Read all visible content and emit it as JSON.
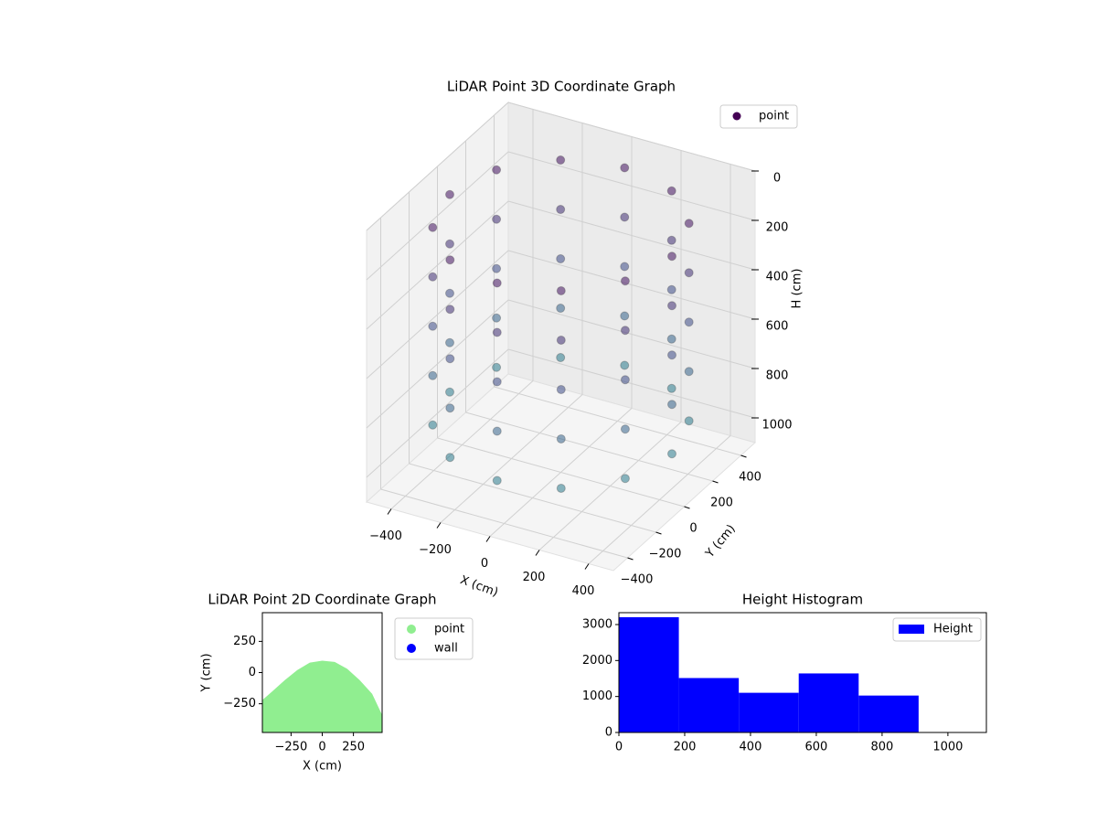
{
  "chart_data": [
    {
      "type": "scatter3d",
      "title": "LiDAR Point 3D Coordinate Graph",
      "xlabel": "X (cm)",
      "ylabel": "Y (cm)",
      "zlabel": "H (cm)",
      "series": [
        {
          "name": "point",
          "color": "#440154",
          "x": [
            450,
            390,
            225,
            0,
            -225,
            -390,
            -450,
            -390,
            -225,
            0,
            225,
            390,
            450,
            390,
            225,
            0,
            -225,
            -390,
            -450,
            -390,
            -225,
            0,
            225,
            390,
            450,
            390,
            225,
            0,
            -225,
            -390,
            -450,
            -390,
            -225,
            0,
            225,
            390,
            450,
            390,
            225,
            0,
            -225,
            -390,
            -450,
            -390,
            -225,
            0,
            225,
            390,
            450,
            390,
            225,
            0,
            -225,
            -390,
            -450,
            -390,
            -225,
            0,
            225,
            390
          ],
          "y": [
            0,
            225,
            390,
            450,
            390,
            225,
            0,
            -225,
            -390,
            -450,
            -390,
            -225,
            0,
            225,
            390,
            450,
            390,
            225,
            0,
            -225,
            -390,
            -450,
            -390,
            -225,
            0,
            225,
            390,
            450,
            390,
            225,
            0,
            -225,
            -390,
            -450,
            -390,
            -225,
            0,
            225,
            390,
            450,
            390,
            225,
            0,
            -225,
            -390,
            -450,
            -390,
            -225,
            0,
            225,
            390,
            450,
            390,
            225,
            0,
            -225,
            -390,
            -450,
            -390,
            -225
          ],
          "z": [
            100,
            100,
            100,
            100,
            100,
            100,
            100,
            100,
            100,
            100,
            100,
            100,
            300,
            300,
            300,
            300,
            300,
            300,
            300,
            300,
            300,
            300,
            300,
            300,
            500,
            500,
            500,
            500,
            500,
            500,
            500,
            500,
            500,
            500,
            500,
            500,
            700,
            700,
            700,
            700,
            700,
            700,
            700,
            700,
            700,
            700,
            700,
            700,
            900,
            900,
            900,
            900,
            900,
            900,
            900,
            900,
            900,
            900,
            900,
            900
          ]
        }
      ],
      "colormap": [
        "#440154",
        "#3b528b",
        "#21918c"
      ],
      "xlim": [
        -500,
        500
      ],
      "ylim": [
        -500,
        500
      ],
      "zlim": [
        0,
        1100
      ],
      "z_inverted": true,
      "xticks": [
        {
          "value": -400,
          "label": "−400"
        },
        {
          "value": -200,
          "label": "−200"
        },
        0,
        200,
        400
      ],
      "yticks": [
        {
          "value": -400,
          "label": "−400"
        },
        {
          "value": -200,
          "label": "−200"
        },
        0,
        200,
        400
      ],
      "zticks": [
        0,
        200,
        400,
        600,
        800,
        1000
      ],
      "grid": true,
      "legend": "upper right"
    },
    {
      "type": "scatter",
      "title": "LiDAR Point 2D Coordinate Graph",
      "xlabel": "X (cm)",
      "ylabel": "Y (cm)",
      "series": [
        {
          "name": "point",
          "color": "#90ee90",
          "x": [
            -480,
            -400,
            -300,
            -200,
            -100,
            0,
            100,
            200,
            300,
            400,
            480
          ],
          "y": [
            -220,
            -150,
            -60,
            20,
            80,
            95,
            85,
            30,
            -60,
            -170,
            -340
          ]
        },
        {
          "name": "wall",
          "color": "#0000ff",
          "x": [],
          "y": []
        }
      ],
      "xlim": [
        -480,
        480
      ],
      "ylim": [
        -480,
        480
      ],
      "xticks": [
        {
          "value": -250,
          "label": "−250"
        },
        0,
        250
      ],
      "yticks": [
        {
          "value": -250,
          "label": "−250"
        },
        0,
        250
      ],
      "legend": "outside right"
    },
    {
      "type": "histogram",
      "title": "Height Histogram",
      "series": [
        {
          "name": "Height",
          "color": "#0000ff",
          "counts": [
            3205,
            1513,
            1103,
            1641,
            1026
          ]
        }
      ],
      "bins": [
        0,
        182.2,
        364.4,
        546.6,
        728.8,
        911
      ],
      "xlim": [
        0,
        1117
      ],
      "ylim": [
        0,
        3330
      ],
      "xticks": [
        0,
        200,
        400,
        600,
        800,
        1000
      ],
      "yticks": [
        0,
        1000,
        2000,
        3000
      ],
      "legend": "upper right"
    }
  ]
}
